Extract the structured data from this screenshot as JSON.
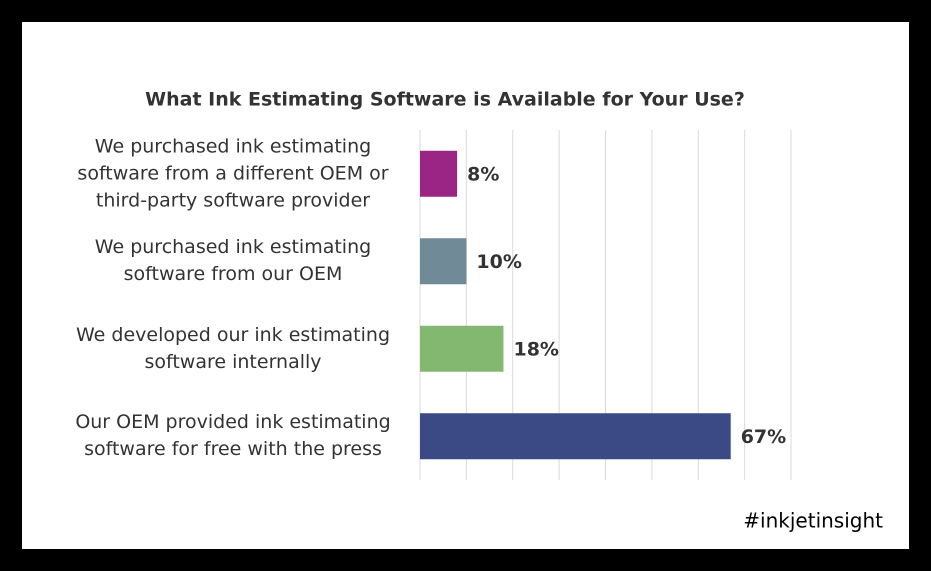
{
  "chart_data": {
    "type": "bar",
    "orientation": "horizontal",
    "title": "What Ink Estimating Software is Available for Your Use?",
    "categories": [
      "We purchased ink estimating software from a different OEM or third-party software provider",
      "We purchased ink estimating software from our OEM",
      "We developed our ink estimating software internally",
      "Our OEM provided ink estimating software for free with the press"
    ],
    "values": [
      8,
      10,
      18,
      67
    ],
    "value_labels": [
      "8%",
      "10%",
      "18%",
      "67%"
    ],
    "colors": [
      "#9a2585",
      "#708a98",
      "#82b870",
      "#3b4a85"
    ],
    "xlim": [
      0,
      80
    ],
    "xticks": [
      0,
      10,
      20,
      30,
      40,
      50,
      60,
      70,
      80
    ],
    "grid": true,
    "annotation": "#inkjetinsight"
  }
}
